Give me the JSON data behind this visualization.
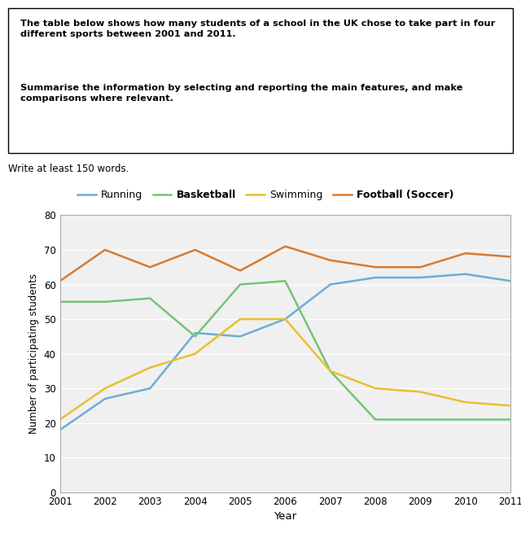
{
  "years": [
    2001,
    2002,
    2003,
    2004,
    2005,
    2006,
    2007,
    2008,
    2009,
    2010,
    2011
  ],
  "running": [
    18,
    27,
    30,
    46,
    45,
    50,
    60,
    62,
    62,
    63,
    61
  ],
  "basketball": [
    55,
    55,
    56,
    45,
    60,
    61,
    35,
    21,
    21,
    21,
    21
  ],
  "swimming": [
    21,
    30,
    36,
    40,
    50,
    50,
    35,
    30,
    29,
    26,
    25
  ],
  "football": [
    61,
    70,
    65,
    70,
    64,
    71,
    67,
    65,
    65,
    69,
    68
  ],
  "colors": {
    "running": "#6baed6",
    "basketball": "#74c476",
    "swimming": "#e8c02e",
    "football": "#d97a2e"
  },
  "ylabel": "Number of participating students",
  "xlabel": "Year",
  "ylim": [
    0,
    80
  ],
  "yticks": [
    0,
    10,
    20,
    30,
    40,
    50,
    60,
    70,
    80
  ],
  "bold_text1": "The table below shows how many students of a school in the UK chose to take part in four\ndifferent sports between 2001 and 2011.",
  "bold_text2": "Summarise the information by selecting and reporting the main features, and make\ncomparisons where relevant.",
  "write_text": "Write at least 150 words.",
  "figwidth": 6.4,
  "figheight": 6.61,
  "dpi": 100
}
